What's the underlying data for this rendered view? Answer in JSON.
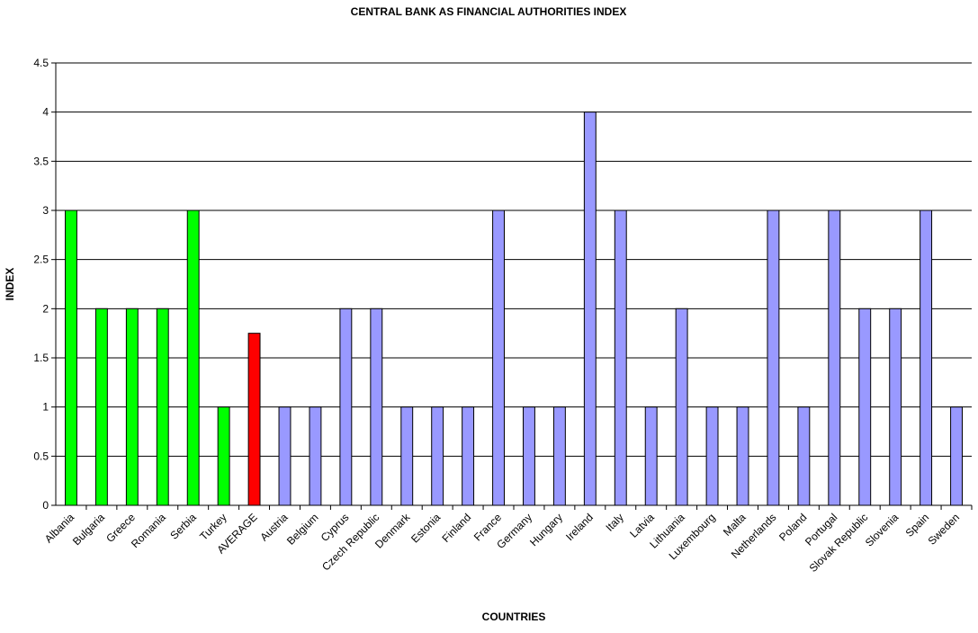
{
  "chart_data": {
    "type": "bar",
    "title": "CENTRAL BANK AS FINANCIAL AUTHORITIES INDEX",
    "xlabel": "COUNTRIES",
    "ylabel": "INDEX",
    "ylim": [
      0,
      4.5
    ],
    "yticks": [
      "0",
      "0.5",
      "1",
      "1.5",
      "2",
      "2.5",
      "3",
      "3.5",
      "4",
      "4.5"
    ],
    "grid": true,
    "legend": "none",
    "categories": [
      "Albania",
      "Bulgaria",
      "Greece",
      "Romania",
      "Serbia",
      "Turkey",
      "AVERAGE",
      "Austria",
      "Belgium",
      "Cyprus",
      "Czech Republic",
      "Denmark",
      "Estonia",
      "Finland",
      "France",
      "Germany",
      "Hungary",
      "Ireland",
      "Italy",
      "Latvia",
      "Lithuania",
      "Luxembourg",
      "Malta",
      "Netherlands",
      "Poland",
      "Portugal",
      "Slovak Republic",
      "Slovenia",
      "Spain",
      "Sweden"
    ],
    "values": [
      3,
      2,
      2,
      2,
      3,
      1,
      1.75,
      1,
      1,
      2,
      2,
      1,
      1,
      1,
      3,
      1,
      1,
      4,
      3,
      1,
      2,
      1,
      1,
      3,
      1,
      3,
      2,
      2,
      3,
      1
    ],
    "colors": {
      "focus_group": "#00ff00",
      "average": "#ff0000",
      "eu_group": "#9999ff"
    },
    "color_groups": [
      "focus_group",
      "focus_group",
      "focus_group",
      "focus_group",
      "focus_group",
      "focus_group",
      "average",
      "eu_group",
      "eu_group",
      "eu_group",
      "eu_group",
      "eu_group",
      "eu_group",
      "eu_group",
      "eu_group",
      "eu_group",
      "eu_group",
      "eu_group",
      "eu_group",
      "eu_group",
      "eu_group",
      "eu_group",
      "eu_group",
      "eu_group",
      "eu_group",
      "eu_group",
      "eu_group",
      "eu_group",
      "eu_group",
      "eu_group"
    ]
  }
}
